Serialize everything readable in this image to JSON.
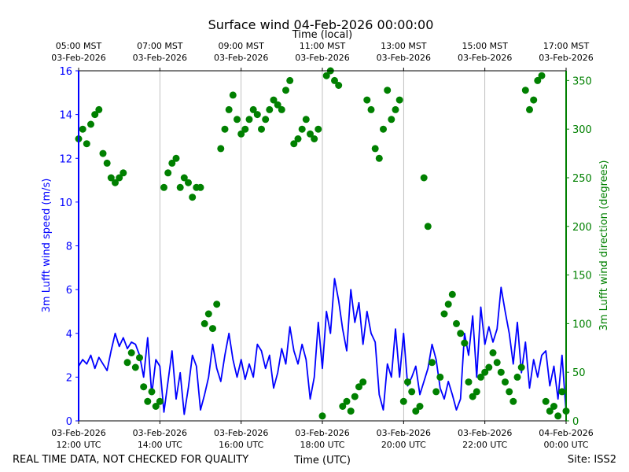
{
  "chart_data": {
    "type": "line",
    "title": "Surface wind 04-Feb-2026 00:00:00",
    "top_axis_label": "Time (local)",
    "xlabel": "Time (UTC)",
    "ylabel_left": "3m Lufft wind speed (m/s)",
    "ylabel_right": "3m Lufft wind direction (degrees)",
    "xlim_hours_utc": [
      12,
      24
    ],
    "ylim_left": [
      0,
      16
    ],
    "ylim_right": [
      0,
      360
    ],
    "grid": "vertical",
    "bottom_ticks": [
      {
        "hour": 12,
        "line1": "03-Feb-2026",
        "line2": "12:00 UTC"
      },
      {
        "hour": 14,
        "line1": "03-Feb-2026",
        "line2": "14:00 UTC"
      },
      {
        "hour": 16,
        "line1": "03-Feb-2026",
        "line2": "16:00 UTC"
      },
      {
        "hour": 18,
        "line1": "03-Feb-2026",
        "line2": "18:00 UTC"
      },
      {
        "hour": 20,
        "line1": "03-Feb-2026",
        "line2": "20:00 UTC"
      },
      {
        "hour": 22,
        "line1": "03-Feb-2026",
        "line2": "22:00 UTC"
      },
      {
        "hour": 24,
        "line1": "04-Feb-2026",
        "line2": "00:00 UTC"
      }
    ],
    "top_ticks": [
      {
        "hour": 12,
        "line1": "05:00 MST",
        "line2": "03-Feb-2026"
      },
      {
        "hour": 14,
        "line1": "07:00 MST",
        "line2": "03-Feb-2026"
      },
      {
        "hour": 16,
        "line1": "09:00 MST",
        "line2": "03-Feb-2026"
      },
      {
        "hour": 18,
        "line1": "11:00 MST",
        "line2": "03-Feb-2026"
      },
      {
        "hour": 20,
        "line1": "13:00 MST",
        "line2": "03-Feb-2026"
      },
      {
        "hour": 22,
        "line1": "15:00 MST",
        "line2": "03-Feb-2026"
      },
      {
        "hour": 24,
        "line1": "17:00 MST",
        "line2": "03-Feb-2026"
      }
    ],
    "left_ticks": [
      0,
      2,
      4,
      6,
      8,
      10,
      12,
      14,
      16
    ],
    "right_ticks": [
      0,
      50,
      100,
      150,
      200,
      250,
      300,
      350
    ],
    "series": [
      {
        "name": "3m Lufft wind speed",
        "axis": "left",
        "style": "line",
        "color": "#0000ff",
        "hours": [
          12.0,
          12.1,
          12.2,
          12.3,
          12.4,
          12.5,
          12.6,
          12.7,
          12.8,
          12.9,
          13.0,
          13.1,
          13.2,
          13.3,
          13.4,
          13.5,
          13.6,
          13.7,
          13.8,
          13.9,
          14.0,
          14.1,
          14.2,
          14.3,
          14.4,
          14.5,
          14.6,
          14.7,
          14.8,
          14.9,
          15.0,
          15.1,
          15.2,
          15.3,
          15.4,
          15.5,
          15.6,
          15.7,
          15.8,
          15.9,
          16.0,
          16.1,
          16.2,
          16.3,
          16.4,
          16.5,
          16.6,
          16.7,
          16.8,
          16.9,
          17.0,
          17.1,
          17.2,
          17.3,
          17.4,
          17.5,
          17.6,
          17.7,
          17.8,
          17.9,
          18.0,
          18.1,
          18.2,
          18.3,
          18.4,
          18.5,
          18.6,
          18.7,
          18.8,
          18.9,
          19.0,
          19.1,
          19.2,
          19.3,
          19.4,
          19.5,
          19.6,
          19.7,
          19.8,
          19.9,
          20.0,
          20.1,
          20.2,
          20.3,
          20.4,
          20.5,
          20.6,
          20.7,
          20.8,
          20.9,
          21.0,
          21.1,
          21.2,
          21.3,
          21.4,
          21.5,
          21.6,
          21.7,
          21.8,
          21.9,
          22.0,
          22.1,
          22.2,
          22.3,
          22.4,
          22.5,
          22.6,
          22.7,
          22.8,
          22.9,
          23.0,
          23.1,
          23.2,
          23.3,
          23.4,
          23.5,
          23.6,
          23.7,
          23.8,
          23.9,
          24.0
        ],
        "values": [
          2.5,
          2.8,
          2.6,
          3.0,
          2.4,
          2.9,
          2.6,
          2.3,
          3.2,
          4.0,
          3.4,
          3.8,
          3.3,
          3.6,
          3.5,
          3.0,
          2.0,
          3.8,
          1.2,
          2.8,
          2.5,
          0.4,
          1.8,
          3.2,
          1.0,
          2.2,
          0.3,
          1.5,
          3.0,
          2.5,
          0.5,
          1.2,
          2.0,
          3.5,
          2.4,
          1.8,
          3.0,
          4.0,
          2.8,
          2.0,
          2.8,
          1.9,
          2.6,
          2.0,
          3.5,
          3.2,
          2.4,
          3.0,
          1.5,
          2.2,
          3.3,
          2.6,
          4.3,
          3.2,
          2.6,
          3.5,
          2.8,
          1.0,
          2.0,
          4.5,
          2.4,
          5.0,
          4.0,
          6.5,
          5.5,
          4.2,
          3.2,
          6.0,
          4.5,
          5.4,
          3.5,
          5.0,
          4.0,
          3.6,
          1.2,
          0.5,
          2.6,
          2.0,
          4.2,
          2.0,
          4.0,
          1.6,
          2.0,
          2.5,
          1.2,
          1.8,
          2.4,
          3.5,
          2.8,
          1.5,
          1.0,
          1.8,
          1.2,
          0.5,
          1.0,
          4.0,
          3.0,
          4.8,
          2.0,
          5.2,
          3.5,
          4.3,
          3.6,
          4.2,
          6.1,
          5.0,
          4.0,
          2.6,
          4.5,
          2.2,
          3.6,
          1.5,
          2.8,
          2.0,
          3.0,
          3.2,
          1.6,
          2.5,
          1.0,
          3.0,
          0.4
        ]
      },
      {
        "name": "3m Lufft wind direction",
        "axis": "right",
        "style": "scatter",
        "color": "#008000",
        "hours": [
          12.0,
          12.1,
          12.2,
          12.3,
          12.4,
          12.5,
          12.6,
          12.7,
          12.8,
          12.9,
          13.0,
          13.1,
          13.2,
          13.3,
          13.4,
          13.5,
          13.6,
          13.7,
          13.8,
          13.9,
          14.0,
          14.1,
          14.2,
          14.3,
          14.4,
          14.5,
          14.6,
          14.7,
          14.8,
          14.9,
          15.0,
          15.1,
          15.2,
          15.3,
          15.4,
          15.5,
          15.6,
          15.7,
          15.8,
          15.9,
          16.0,
          16.1,
          16.2,
          16.3,
          16.4,
          16.5,
          16.6,
          16.7,
          16.8,
          16.9,
          17.0,
          17.1,
          17.2,
          17.3,
          17.4,
          17.5,
          17.6,
          17.7,
          17.8,
          17.9,
          18.0,
          18.1,
          18.2,
          18.3,
          18.4,
          18.5,
          18.6,
          18.7,
          18.8,
          18.9,
          19.0,
          19.1,
          19.2,
          19.3,
          19.4,
          19.5,
          19.6,
          19.7,
          19.8,
          19.9,
          20.0,
          20.1,
          20.2,
          20.3,
          20.4,
          20.5,
          20.6,
          20.7,
          20.8,
          20.9,
          21.0,
          21.1,
          21.2,
          21.3,
          21.4,
          21.5,
          21.6,
          21.7,
          21.8,
          21.9,
          22.0,
          22.1,
          22.2,
          22.3,
          22.4,
          22.5,
          22.6,
          22.7,
          22.8,
          22.9,
          23.0,
          23.1,
          23.2,
          23.3,
          23.4,
          23.5,
          23.6,
          23.7,
          23.8,
          23.9,
          24.0
        ],
        "values": [
          290,
          300,
          285,
          305,
          315,
          320,
          275,
          265,
          250,
          245,
          250,
          255,
          60,
          70,
          55,
          65,
          35,
          20,
          30,
          15,
          20,
          240,
          255,
          265,
          270,
          240,
          250,
          245,
          230,
          240,
          240,
          100,
          110,
          95,
          120,
          280,
          300,
          320,
          335,
          310,
          295,
          300,
          310,
          320,
          315,
          300,
          310,
          320,
          330,
          325,
          320,
          340,
          350,
          285,
          290,
          300,
          310,
          295,
          290,
          300,
          5,
          355,
          360,
          350,
          345,
          15,
          20,
          10,
          25,
          35,
          40,
          330,
          320,
          280,
          270,
          300,
          340,
          310,
          320,
          330,
          20,
          40,
          30,
          10,
          15,
          250,
          200,
          60,
          30,
          45,
          110,
          120,
          130,
          100,
          90,
          80,
          40,
          25,
          30,
          45,
          50,
          55,
          70,
          60,
          50,
          40,
          30,
          20,
          45,
          55,
          340,
          320,
          330,
          350,
          355,
          20,
          10,
          15,
          5,
          30,
          10
        ]
      }
    ],
    "footer_left": "REAL TIME DATA, NOT CHECKED FOR QUALITY",
    "footer_right": "Site: ISS2"
  }
}
